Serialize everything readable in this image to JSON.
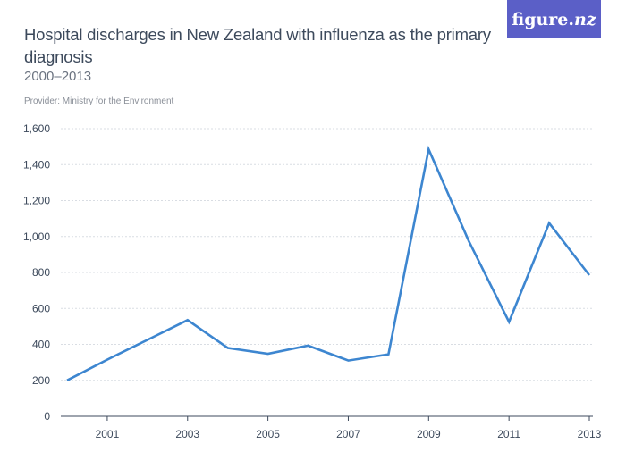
{
  "title": "Hospital discharges in New Zealand with influenza as the primary diagnosis",
  "subtitle": "2000–2013",
  "provider": "Provider: Ministry for the Environment",
  "logo": {
    "text_main": "figure.",
    "text_suffix": "nz"
  },
  "colors": {
    "line": "#3d86d0",
    "grid": "#d9dde3",
    "axis": "#3d4a5c",
    "logo_bg": "#5b5fc7"
  },
  "chart_data": {
    "type": "line",
    "x": [
      2000,
      2001,
      2002,
      2003,
      2004,
      2005,
      2006,
      2007,
      2008,
      2009,
      2010,
      2011,
      2012,
      2013
    ],
    "y": [
      200,
      315,
      425,
      535,
      380,
      348,
      393,
      310,
      345,
      1485,
      975,
      525,
      1075,
      785
    ],
    "xticks": [
      "2001",
      "2003",
      "2005",
      "2007",
      "2009",
      "2011",
      "2013"
    ],
    "yticks": [
      "0",
      "200",
      "400",
      "600",
      "800",
      "1,000",
      "1,200",
      "1,400",
      "1,600"
    ],
    "ylim": [
      0,
      1600
    ],
    "xlim": [
      2000,
      2013
    ],
    "grid": true
  }
}
